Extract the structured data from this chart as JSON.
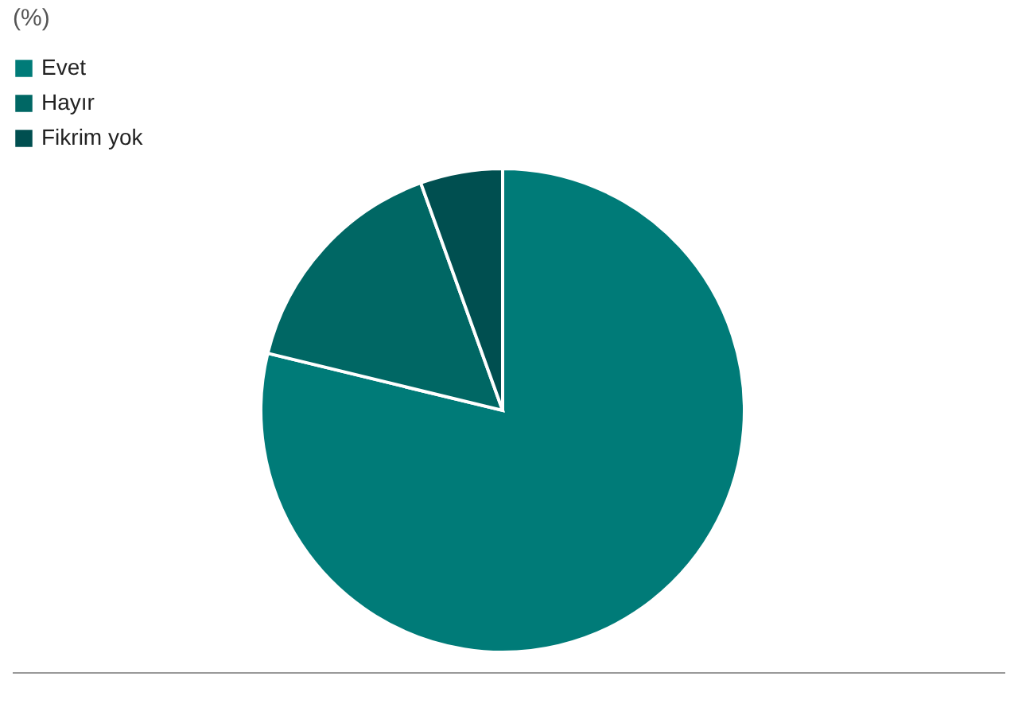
{
  "chart_data": {
    "type": "pie",
    "title": "(%)",
    "categories": [
      "Evet",
      "Hayır",
      "Fikrim yok"
    ],
    "values": [
      78.8,
      15.7,
      5.5
    ],
    "colors": [
      "#007b78",
      "#006764",
      "#004f50"
    ],
    "legend": "top left"
  }
}
